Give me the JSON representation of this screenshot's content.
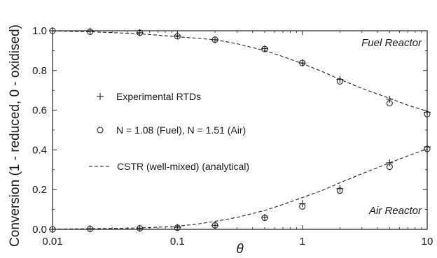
{
  "chart_data": {
    "type": "scatter",
    "xlabel": "θ",
    "ylabel": "Conversion (1 - reduced, 0 - oxidised)",
    "x_scale": "log",
    "xlim": [
      0.01,
      10
    ],
    "ylim": [
      0,
      1
    ],
    "x_ticks": [
      0.01,
      0.1,
      1,
      10
    ],
    "x_tick_labels": [
      "0.01",
      "0.1",
      "1",
      "10"
    ],
    "y_ticks": [
      0,
      0.2,
      0.4,
      0.6,
      0.8,
      1.0
    ],
    "y_tick_labels": [
      "0.0",
      "0.2",
      "0.4",
      "0.6",
      "0.8",
      "1.0"
    ],
    "grid": false,
    "annotations": [
      {
        "text": "Fuel Reactor",
        "near": "top-right"
      },
      {
        "text": "Air Reactor",
        "near": "bottom-right"
      }
    ],
    "legend": {
      "placement": "center-left",
      "entries": [
        {
          "marker": "plus",
          "label": "Experimental RTDs"
        },
        {
          "marker": "circle",
          "label": "N = 1.08 (Fuel), N = 1.51 (Air)"
        },
        {
          "marker": "dashed-line",
          "label": "CSTR (well-mixed) (analytical)"
        }
      ]
    },
    "series": [
      {
        "marker": "plus",
        "reactor": "Fuel",
        "x": [
          0.01,
          0.02,
          0.05,
          0.1,
          0.2,
          0.5,
          1,
          2,
          5,
          10
        ],
        "y": [
          1.0,
          0.998,
          0.99,
          0.975,
          0.955,
          0.91,
          0.838,
          0.755,
          0.655,
          0.59
        ]
      },
      {
        "marker": "circle",
        "reactor": "Fuel",
        "x": [
          0.01,
          0.02,
          0.05,
          0.1,
          0.2,
          0.5,
          1,
          2,
          5,
          10
        ],
        "y": [
          1.0,
          0.995,
          0.99,
          0.972,
          0.955,
          0.908,
          0.838,
          0.745,
          0.635,
          0.58
        ]
      },
      {
        "marker": "dashed-line",
        "reactor": "Fuel",
        "x": [
          0.01,
          0.02,
          0.05,
          0.1,
          0.2,
          0.3,
          0.5,
          0.7,
          1,
          1.5,
          2,
          3,
          5,
          7,
          10
        ],
        "y": [
          0.999,
          0.995,
          0.985,
          0.97,
          0.955,
          0.935,
          0.9,
          0.87,
          0.835,
          0.79,
          0.755,
          0.71,
          0.66,
          0.625,
          0.595
        ]
      },
      {
        "marker": "plus",
        "reactor": "Air",
        "x": [
          0.01,
          0.02,
          0.05,
          0.1,
          0.2,
          0.5,
          1,
          2,
          5,
          10
        ],
        "y": [
          0.0,
          0.003,
          0.005,
          0.01,
          0.02,
          0.06,
          0.13,
          0.205,
          0.335,
          0.415
        ]
      },
      {
        "marker": "circle",
        "reactor": "Air",
        "x": [
          0.01,
          0.02,
          0.05,
          0.1,
          0.2,
          0.5,
          1,
          2,
          5,
          10
        ],
        "y": [
          0.0,
          0.002,
          0.005,
          0.008,
          0.02,
          0.058,
          0.115,
          0.195,
          0.315,
          0.405
        ]
      },
      {
        "marker": "dashed-line",
        "reactor": "Air",
        "x": [
          0.01,
          0.02,
          0.05,
          0.1,
          0.15,
          0.2,
          0.3,
          0.5,
          0.7,
          1,
          1.5,
          2,
          3,
          5,
          7,
          10
        ],
        "y": [
          0.001,
          0.003,
          0.007,
          0.015,
          0.028,
          0.04,
          0.06,
          0.095,
          0.125,
          0.16,
          0.2,
          0.235,
          0.28,
          0.335,
          0.37,
          0.405
        ]
      }
    ]
  }
}
